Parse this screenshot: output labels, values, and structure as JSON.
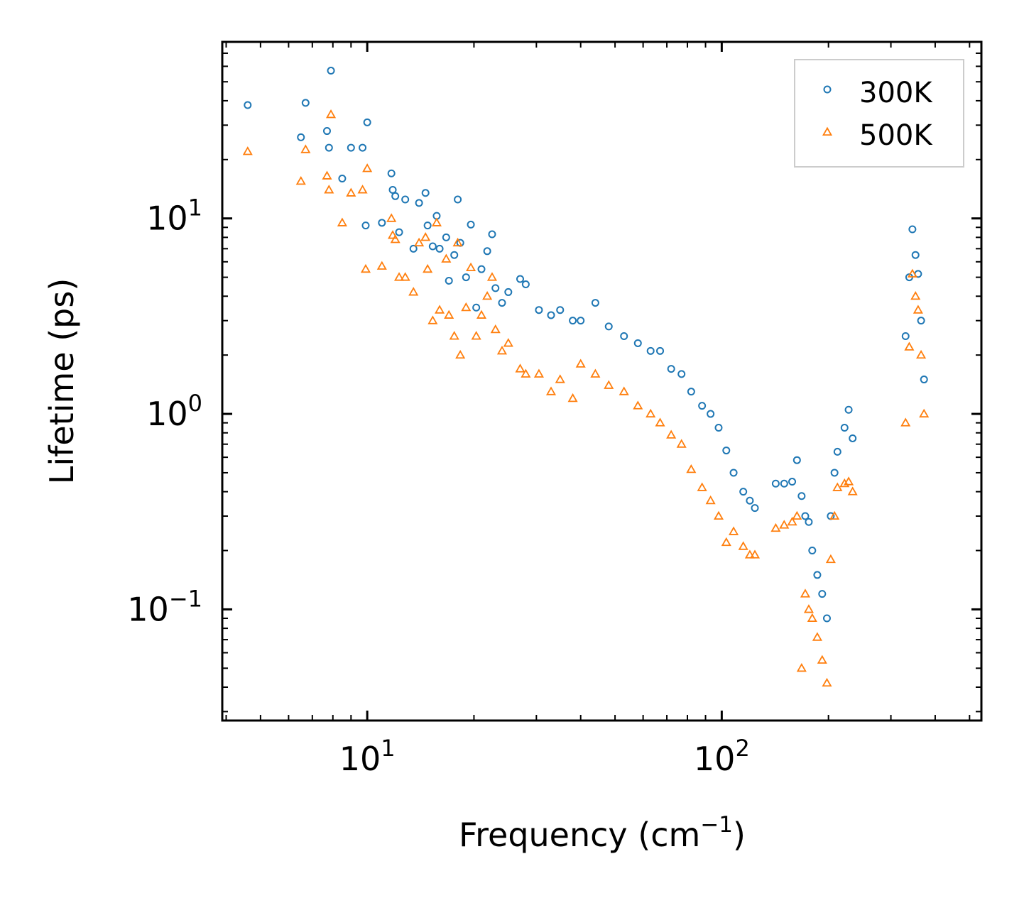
{
  "chart_data": {
    "type": "scatter",
    "title": "",
    "xlabel": "Frequency (cm",
    "xlabel_sup": "−1",
    "xlabel_suffix": ")",
    "ylabel": "Lifetime (ps)",
    "xscale": "log",
    "yscale": "log",
    "xlim": [
      3.9,
      540
    ],
    "ylim": [
      0.027,
      80
    ],
    "x_ticks": [
      {
        "value": 10,
        "base": "10",
        "exp": "1"
      },
      {
        "value": 100,
        "base": "10",
        "exp": "2"
      }
    ],
    "y_ticks": [
      {
        "value": 0.1,
        "base": "10",
        "exp": "−1"
      },
      {
        "value": 1,
        "base": "10",
        "exp": "0"
      },
      {
        "value": 10,
        "base": "10",
        "exp": "1"
      }
    ],
    "legend_position": "top-right",
    "series": [
      {
        "name": "300K",
        "marker": "circle",
        "color": "#1f77b4",
        "points": [
          [
            4.6,
            38
          ],
          [
            6.5,
            26
          ],
          [
            6.7,
            39
          ],
          [
            7.7,
            28
          ],
          [
            7.9,
            57
          ],
          [
            7.8,
            23
          ],
          [
            8.5,
            16
          ],
          [
            9.0,
            23
          ],
          [
            9.7,
            23
          ],
          [
            10.0,
            31
          ],
          [
            9.9,
            9.2
          ],
          [
            11.0,
            9.5
          ],
          [
            11.7,
            17
          ],
          [
            11.8,
            14
          ],
          [
            12.0,
            13
          ],
          [
            12.3,
            8.5
          ],
          [
            12.8,
            12.5
          ],
          [
            13.5,
            7.0
          ],
          [
            14.0,
            12.0
          ],
          [
            14.6,
            13.5
          ],
          [
            14.8,
            9.2
          ],
          [
            15.3,
            7.2
          ],
          [
            15.7,
            10.3
          ],
          [
            16.0,
            7.0
          ],
          [
            16.7,
            8.0
          ],
          [
            17.0,
            4.8
          ],
          [
            17.6,
            6.5
          ],
          [
            18.0,
            12.5
          ],
          [
            18.3,
            7.5
          ],
          [
            19.0,
            5.0
          ],
          [
            19.6,
            9.3
          ],
          [
            20.3,
            3.5
          ],
          [
            21.0,
            5.5
          ],
          [
            21.8,
            6.8
          ],
          [
            22.5,
            8.3
          ],
          [
            23.0,
            4.4
          ],
          [
            24.0,
            3.7
          ],
          [
            25.0,
            4.2
          ],
          [
            27.0,
            4.9
          ],
          [
            28.0,
            4.6
          ],
          [
            30.5,
            3.4
          ],
          [
            33.0,
            3.2
          ],
          [
            35.0,
            3.4
          ],
          [
            38.0,
            3.0
          ],
          [
            40.0,
            3.0
          ],
          [
            44.0,
            3.7
          ],
          [
            48.0,
            2.8
          ],
          [
            53.0,
            2.5
          ],
          [
            58.0,
            2.3
          ],
          [
            63.0,
            2.1
          ],
          [
            67.0,
            2.1
          ],
          [
            72.0,
            1.7
          ],
          [
            77.0,
            1.6
          ],
          [
            82.0,
            1.3
          ],
          [
            88.0,
            1.1
          ],
          [
            93.0,
            1.0
          ],
          [
            98.0,
            0.85
          ],
          [
            103.0,
            0.65
          ],
          [
            108.0,
            0.5
          ],
          [
            115.0,
            0.4
          ],
          [
            120.0,
            0.36
          ],
          [
            124.0,
            0.33
          ],
          [
            142.0,
            0.44
          ],
          [
            150.0,
            0.44
          ],
          [
            158.0,
            0.45
          ],
          [
            163.0,
            0.58
          ],
          [
            168.0,
            0.38
          ],
          [
            172.0,
            0.3
          ],
          [
            176.0,
            0.28
          ],
          [
            180.0,
            0.2
          ],
          [
            186.0,
            0.15
          ],
          [
            192.0,
            0.12
          ],
          [
            198.0,
            0.09
          ],
          [
            203.0,
            0.3
          ],
          [
            208.0,
            0.5
          ],
          [
            212.0,
            0.64
          ],
          [
            222.0,
            0.85
          ],
          [
            228.0,
            1.05
          ],
          [
            234.0,
            0.75
          ],
          [
            330.0,
            2.5
          ],
          [
            338.0,
            5.0
          ],
          [
            345.0,
            8.8
          ],
          [
            352.0,
            6.5
          ],
          [
            358.0,
            5.2
          ],
          [
            365.0,
            3.0
          ],
          [
            372.0,
            1.5
          ]
        ]
      },
      {
        "name": "500K",
        "marker": "triangle",
        "color": "#ff7f0e",
        "points": [
          [
            4.6,
            22
          ],
          [
            6.5,
            15.5
          ],
          [
            6.7,
            22.5
          ],
          [
            7.7,
            16.5
          ],
          [
            7.9,
            34
          ],
          [
            7.8,
            14
          ],
          [
            8.5,
            9.5
          ],
          [
            9.0,
            13.5
          ],
          [
            9.7,
            14
          ],
          [
            10.0,
            18
          ],
          [
            9.9,
            5.5
          ],
          [
            11.0,
            5.7
          ],
          [
            11.7,
            10
          ],
          [
            11.8,
            8.2
          ],
          [
            12.0,
            7.8
          ],
          [
            12.3,
            5.0
          ],
          [
            12.8,
            5.0
          ],
          [
            13.5,
            4.2
          ],
          [
            14.0,
            7.5
          ],
          [
            14.6,
            8.0
          ],
          [
            14.8,
            5.5
          ],
          [
            15.3,
            3.0
          ],
          [
            15.7,
            9.5
          ],
          [
            16.0,
            3.4
          ],
          [
            16.7,
            6.2
          ],
          [
            17.0,
            3.2
          ],
          [
            17.6,
            2.5
          ],
          [
            18.0,
            7.5
          ],
          [
            18.3,
            2.0
          ],
          [
            19.0,
            3.5
          ],
          [
            19.6,
            5.6
          ],
          [
            20.3,
            2.5
          ],
          [
            21.0,
            3.2
          ],
          [
            21.8,
            4.0
          ],
          [
            22.5,
            5.0
          ],
          [
            23.0,
            2.7
          ],
          [
            24.0,
            2.1
          ],
          [
            25.0,
            2.3
          ],
          [
            27.0,
            1.7
          ],
          [
            28.0,
            1.6
          ],
          [
            30.5,
            1.6
          ],
          [
            33.0,
            1.3
          ],
          [
            35.0,
            1.5
          ],
          [
            38.0,
            1.2
          ],
          [
            40.0,
            1.8
          ],
          [
            44.0,
            1.6
          ],
          [
            48.0,
            1.4
          ],
          [
            53.0,
            1.3
          ],
          [
            58.0,
            1.1
          ],
          [
            63.0,
            1.0
          ],
          [
            67.0,
            0.9
          ],
          [
            72.0,
            0.78
          ],
          [
            77.0,
            0.7
          ],
          [
            82.0,
            0.52
          ],
          [
            88.0,
            0.42
          ],
          [
            93.0,
            0.36
          ],
          [
            98.0,
            0.3
          ],
          [
            103.0,
            0.22
          ],
          [
            108.0,
            0.25
          ],
          [
            115.0,
            0.21
          ],
          [
            120.0,
            0.19
          ],
          [
            124.0,
            0.19
          ],
          [
            142.0,
            0.26
          ],
          [
            150.0,
            0.27
          ],
          [
            158.0,
            0.28
          ],
          [
            163.0,
            0.3
          ],
          [
            168.0,
            0.05
          ],
          [
            172.0,
            0.12
          ],
          [
            176.0,
            0.1
          ],
          [
            180.0,
            0.09
          ],
          [
            186.0,
            0.072
          ],
          [
            192.0,
            0.055
          ],
          [
            198.0,
            0.042
          ],
          [
            203.0,
            0.18
          ],
          [
            208.0,
            0.3
          ],
          [
            212.0,
            0.42
          ],
          [
            222.0,
            0.44
          ],
          [
            228.0,
            0.45
          ],
          [
            234.0,
            0.4
          ],
          [
            330.0,
            0.9
          ],
          [
            338.0,
            2.2
          ],
          [
            345.0,
            5.2
          ],
          [
            352.0,
            4.0
          ],
          [
            358.0,
            3.4
          ],
          [
            365.0,
            2.0
          ],
          [
            372.0,
            1.0
          ]
        ]
      }
    ]
  }
}
